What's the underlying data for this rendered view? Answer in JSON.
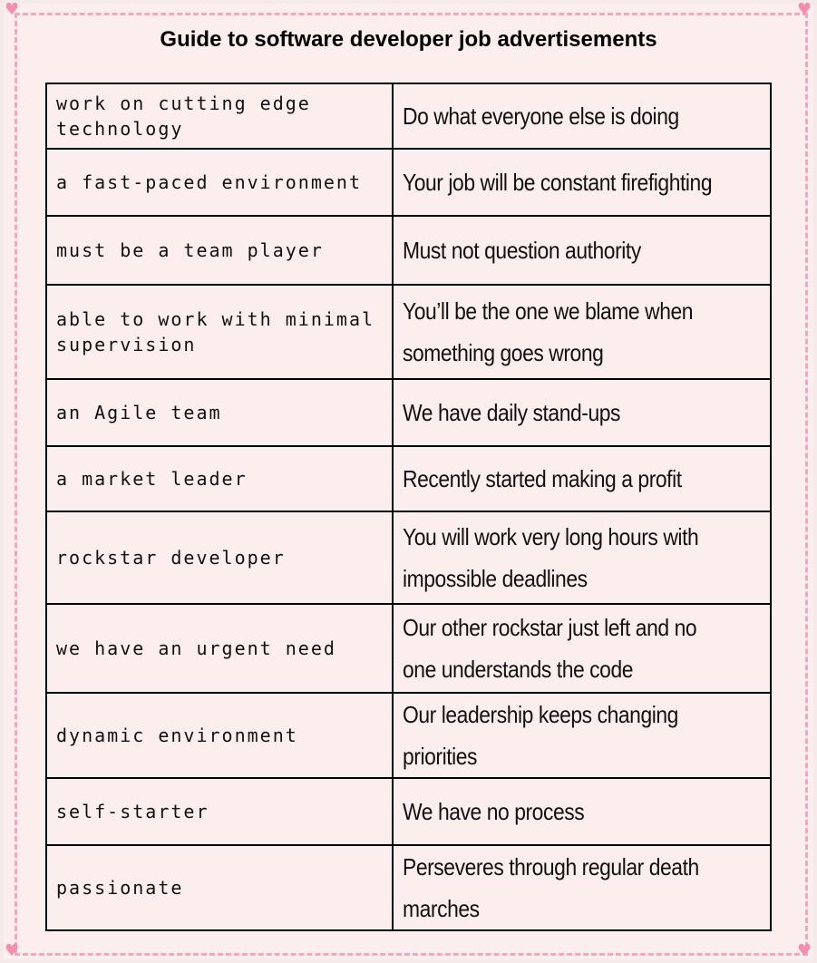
{
  "title": "Guide to software developer job advertisements",
  "rows": [
    {
      "phrase": "work on cutting edge technology",
      "meaning": [
        "Do what everyone else is doing"
      ]
    },
    {
      "phrase": "a fast-paced environment",
      "meaning": [
        "Your job will be constant firefighting"
      ]
    },
    {
      "phrase": "must be a team player",
      "meaning": [
        "Must not question authority"
      ]
    },
    {
      "phrase": "able to work with minimal supervision",
      "meaning": [
        "You’ll be the one we blame when",
        "something goes wrong"
      ]
    },
    {
      "phrase": "an Agile team",
      "meaning": [
        "We have daily stand-ups"
      ]
    },
    {
      "phrase": "a market leader",
      "meaning": [
        "Recently started making a profit"
      ]
    },
    {
      "phrase": "rockstar developer",
      "meaning": [
        "You will work very long hours with",
        "impossible deadlines"
      ]
    },
    {
      "phrase": "we have an urgent need",
      "meaning": [
        "Our other rockstar just left and no",
        "one understands the code"
      ]
    },
    {
      "phrase": "dynamic environment",
      "meaning": [
        "Our leadership keeps changing",
        "priorities"
      ]
    },
    {
      "phrase": "self-starter",
      "meaning": [
        "We have no process"
      ]
    },
    {
      "phrase": "passionate",
      "meaning": [
        "Perseveres through regular death",
        "marches"
      ]
    }
  ],
  "colors": {
    "background": "#fdeeee",
    "border_dash": "#f2a6c0"
  },
  "decorations": [
    "heart-icon"
  ]
}
